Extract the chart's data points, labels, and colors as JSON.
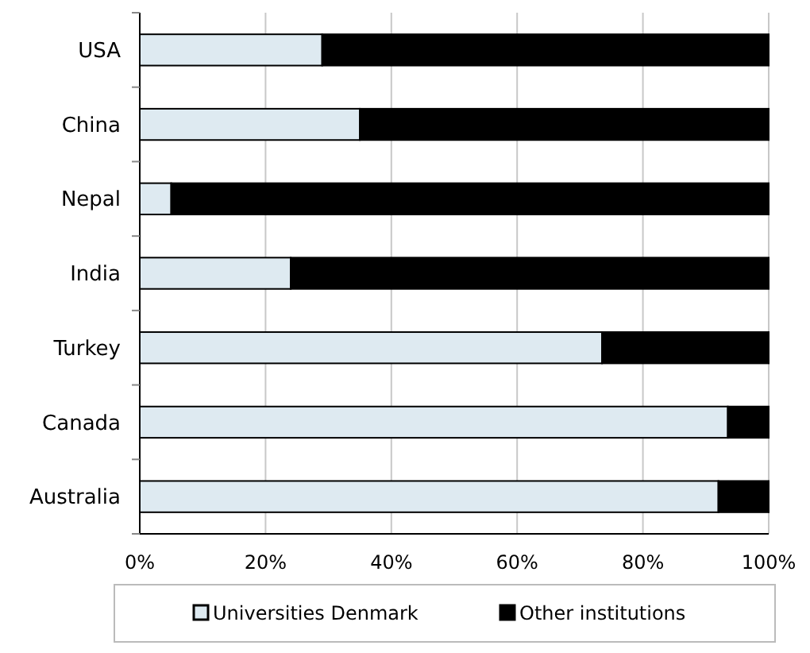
{
  "chart_data": {
    "type": "bar",
    "orientation": "horizontal",
    "stacked": true,
    "categories": [
      "USA",
      "China",
      "Nepal",
      "India",
      "Turkey",
      "Canada",
      "Australia"
    ],
    "series": [
      {
        "name": "Universities Denmark",
        "color": "#deeaf1",
        "values": [
          29,
          35,
          5,
          24,
          73.5,
          93.5,
          92
        ]
      },
      {
        "name": "Other institutions",
        "color": "#000000",
        "values": [
          71,
          65,
          95,
          76,
          26.5,
          6.5,
          8
        ]
      }
    ],
    "xlim": [
      0,
      100
    ],
    "xticks": [
      {
        "value": 0,
        "label": "0%"
      },
      {
        "value": 20,
        "label": "20%"
      },
      {
        "value": 40,
        "label": "40%"
      },
      {
        "value": 60,
        "label": "60%"
      },
      {
        "value": 80,
        "label": "80%"
      },
      {
        "value": 100,
        "label": "100%"
      }
    ],
    "grid": "x",
    "legend": "bottom"
  }
}
